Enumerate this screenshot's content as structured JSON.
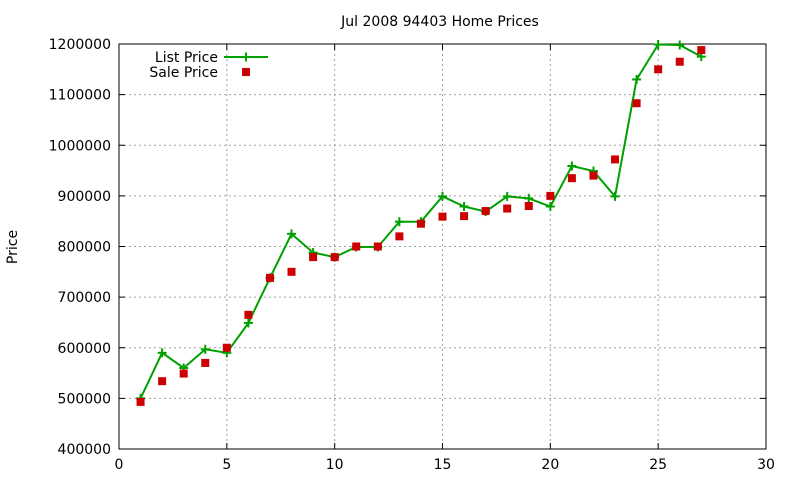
{
  "chart_data": {
    "type": "scatter",
    "title": "Jul 2008 94403 Home Prices",
    "xlabel": "",
    "ylabel": "Price",
    "xlim": [
      0,
      30
    ],
    "ylim": [
      400000,
      1200000
    ],
    "xticks": [
      0,
      5,
      10,
      15,
      20,
      25,
      30
    ],
    "yticks": [
      400000,
      500000,
      600000,
      700000,
      800000,
      900000,
      1000000,
      1100000,
      1200000
    ],
    "grid": true,
    "legend_position": "top-left",
    "series": [
      {
        "name": "List Price",
        "style": "line+plus",
        "color": "#00a000",
        "x": [
          1,
          2,
          3,
          4,
          5,
          6,
          7,
          8,
          9,
          10,
          11,
          12,
          13,
          14,
          15,
          16,
          17,
          18,
          19,
          20,
          21,
          22,
          23,
          24,
          25,
          26,
          27
        ],
        "y": [
          500000,
          590000,
          560000,
          597000,
          590000,
          649000,
          738000,
          825000,
          788000,
          779000,
          799000,
          799000,
          849000,
          849000,
          899000,
          879000,
          869000,
          899000,
          895000,
          879000,
          959000,
          949000,
          899000,
          1130000,
          1199000,
          1198000,
          1175000
        ]
      },
      {
        "name": "Sale Price",
        "style": "square",
        "color": "#cc0000",
        "x": [
          1,
          2,
          3,
          4,
          5,
          6,
          7,
          8,
          9,
          10,
          11,
          12,
          13,
          14,
          15,
          16,
          17,
          18,
          19,
          20,
          21,
          22,
          23,
          24,
          25,
          26,
          27
        ],
        "y": [
          493000,
          534000,
          549000,
          570000,
          600000,
          665000,
          738000,
          750000,
          779000,
          779000,
          800000,
          800000,
          820000,
          845000,
          859000,
          860000,
          870000,
          875000,
          880000,
          900000,
          935000,
          940000,
          972000,
          1083000,
          1150000,
          1165000,
          1188000
        ]
      }
    ]
  }
}
